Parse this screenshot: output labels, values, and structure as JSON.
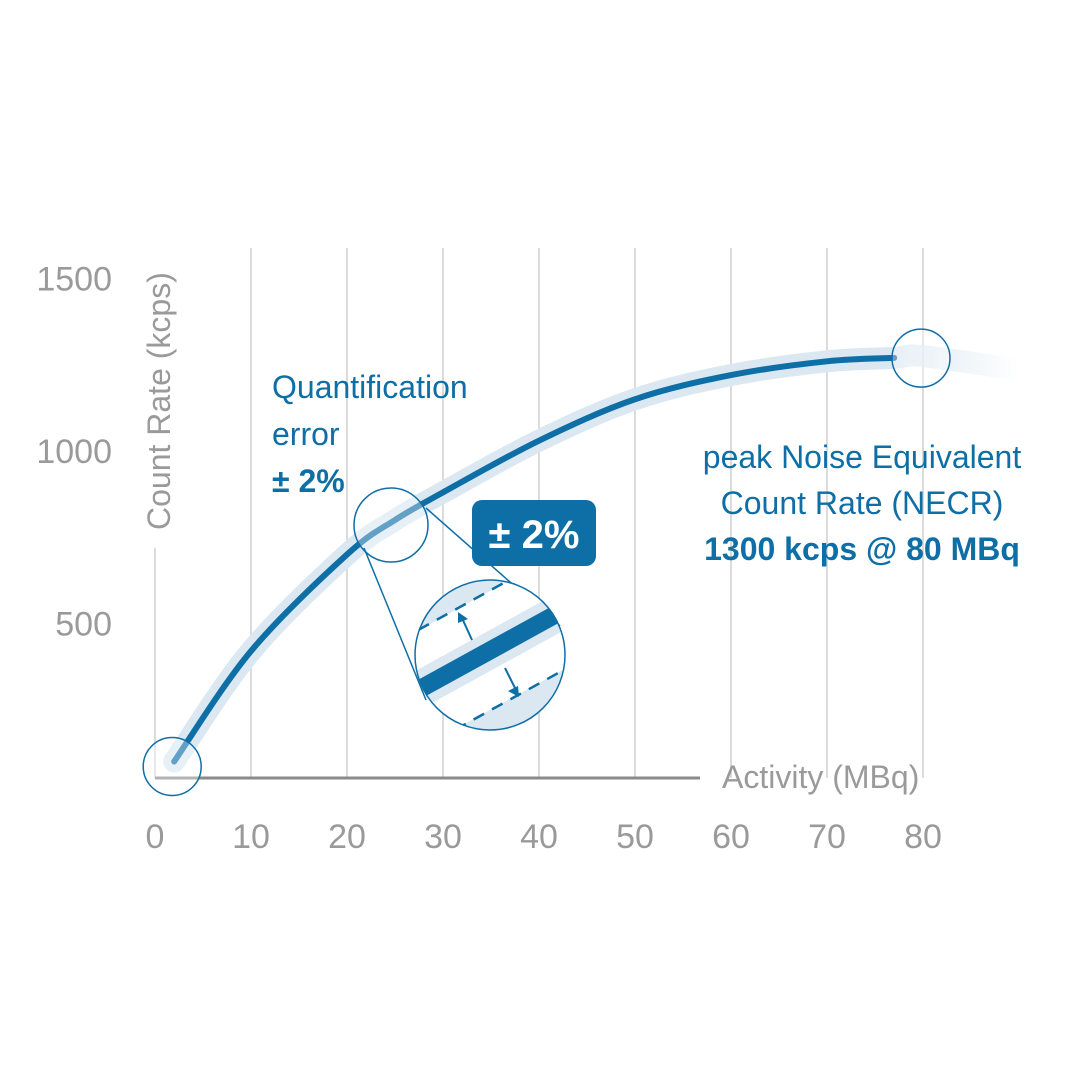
{
  "chart_data": {
    "type": "line",
    "xlabel": "Activity (MBq)",
    "ylabel": "Count Rate (kcps)",
    "xlim": [
      0,
      80
    ],
    "ylim": [
      0,
      1500
    ],
    "x_ticks": [
      0,
      10,
      20,
      30,
      40,
      50,
      60,
      70,
      80
    ],
    "y_ticks": [
      500,
      1000,
      1500
    ],
    "grid": "vertical",
    "series": [
      {
        "x": [
          2,
          10,
          20,
          25,
          30,
          40,
          50,
          60,
          70,
          77,
          80,
          90
        ],
        "y": [
          100,
          420,
          700,
          800,
          880,
          1030,
          1150,
          1220,
          1260,
          1270,
          1275,
          1235
        ]
      }
    ],
    "colors": {
      "line": "#0e6ea6",
      "band": "#dbe8f2",
      "grid": "#cfcfcf",
      "axis": "#8a8a8a",
      "text": "#9a9a9a"
    },
    "annotations": {
      "quant_line1": "Quantification",
      "quant_line2": "error",
      "quant_line3": "± 2%",
      "badge": "± 2%",
      "peak_line1": "peak Noise Equivalent",
      "peak_line2": "Count Rate (NECR)",
      "peak_line3": "1300 kcps @ 80 MBq"
    }
  }
}
